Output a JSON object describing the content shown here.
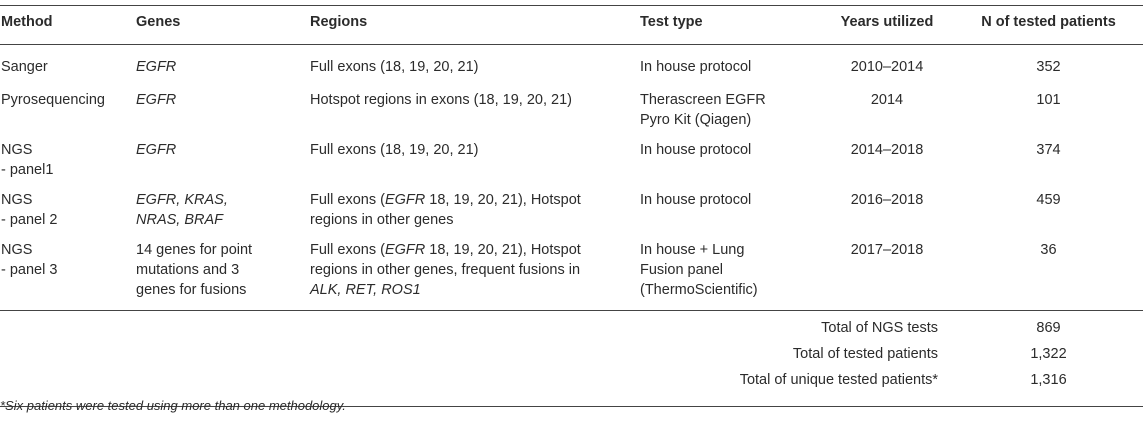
{
  "table": {
    "headers": [
      "Method",
      "Genes",
      "Regions",
      "Test type",
      "Years utilized",
      "N of tested patients"
    ],
    "rows": [
      {
        "method": [
          "Sanger"
        ],
        "genes_html": "<em>EGFR</em>",
        "regions_html": "Full exons (18, 19, 20, 21)",
        "test_type": [
          "In house protocol"
        ],
        "years": "2010–2014",
        "n": "352"
      },
      {
        "method": [
          "Pyrosequencing"
        ],
        "genes_html": "<em>EGFR</em>",
        "regions_html": "Hotspot regions in exons (18, 19, 20, 21)",
        "test_type": [
          "Therascreen EGFR",
          "Pyro Kit (Qiagen)"
        ],
        "years": "2014",
        "n": "101"
      },
      {
        "method": [
          "NGS",
          "- panel1"
        ],
        "genes_html": "<em>EGFR</em>",
        "regions_html": "Full exons (18, 19, 20, 21)",
        "test_type": [
          "In house protocol"
        ],
        "years": "2014–2018",
        "n": "374"
      },
      {
        "method": [
          "NGS",
          "- panel 2"
        ],
        "genes_html": "<em>EGFR, KRAS,</em><br><em>NRAS, BRAF</em>",
        "regions_html": "Full exons (<em>EGFR</em> 18, 19, 20, 21), Hotspot<br>regions in other genes",
        "test_type": [
          "In house protocol"
        ],
        "years": "2016–2018",
        "n": "459"
      },
      {
        "method": [
          "NGS",
          "- panel 3"
        ],
        "genes_html": "14 genes for point<br>mutations and 3<br>genes for fusions",
        "regions_html": "Full exons (<em>EGFR</em> 18, 19, 20, 21), Hotspot<br>regions in other genes, frequent fusions in<br><em>ALK, RET, ROS1</em>",
        "test_type": [
          "In house + Lung",
          "Fusion panel",
          "(ThermoScientific)"
        ],
        "years": "2017–2018",
        "n": "36"
      }
    ],
    "totals": [
      {
        "label": "Total of NGS tests",
        "value": "869"
      },
      {
        "label": "Total of tested patients",
        "value": "1,322"
      },
      {
        "label": "Total of unique tested patients*",
        "value": "1,316"
      }
    ]
  },
  "footnote": "*Six patients were tested using more than one methodology."
}
